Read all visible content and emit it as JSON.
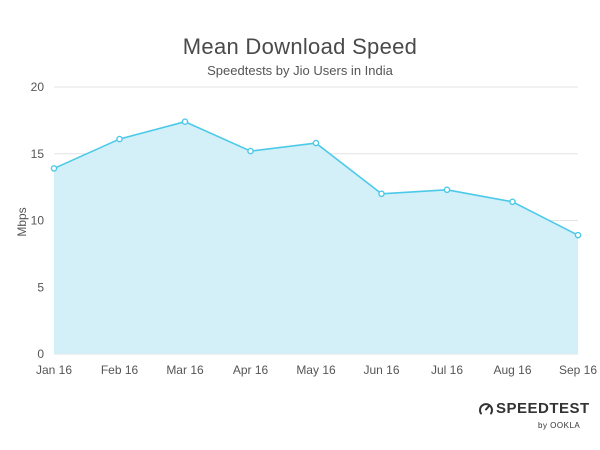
{
  "chart_data": {
    "type": "area",
    "title": "Mean Download Speed",
    "subtitle": "Speedtests by Jio Users in India",
    "xlabel": "",
    "ylabel": "Mbps",
    "categories": [
      "Jan 16",
      "Feb 16",
      "Mar 16",
      "Apr 16",
      "May 16",
      "Jun 16",
      "Jul 16",
      "Aug 16",
      "Sep 16"
    ],
    "values": [
      13.9,
      16.1,
      17.4,
      15.2,
      15.8,
      12.0,
      12.3,
      11.4,
      8.9
    ],
    "ylim": [
      0,
      20
    ],
    "yticks": [
      0,
      5,
      10,
      15,
      20
    ],
    "grid": true,
    "colors": {
      "line": "#4cc9e8",
      "fill": "#d3f0f8",
      "grid": "#e3e3e3",
      "marker_fill": "#ffffff"
    }
  },
  "branding": {
    "main": "SPEEDTEST",
    "sub": "by OOKLA",
    "icon": "speedometer-icon"
  }
}
